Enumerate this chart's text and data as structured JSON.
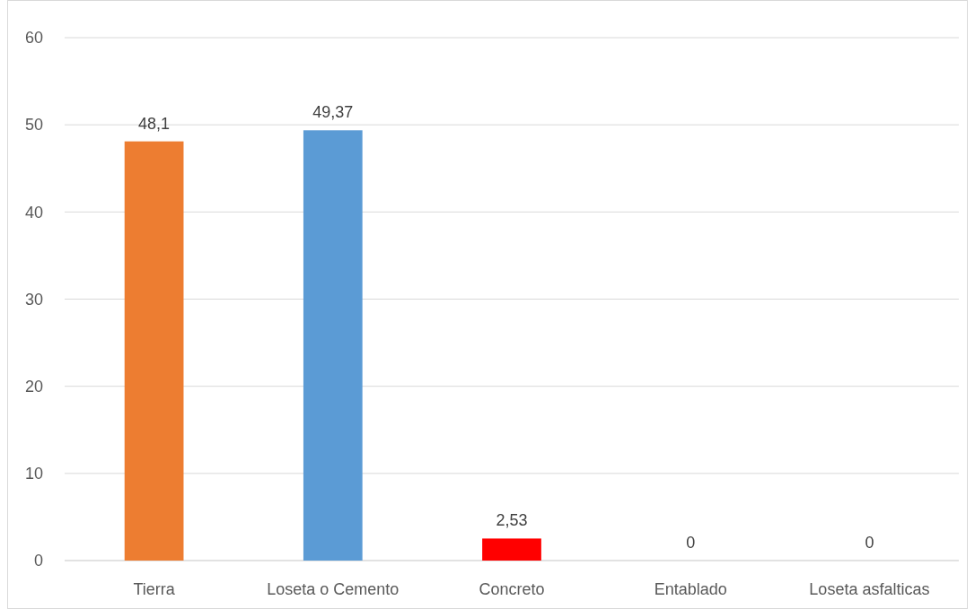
{
  "chart_data": {
    "type": "bar",
    "categories": [
      "Tierra",
      "Loseta o Cemento",
      "Concreto",
      "Entablado",
      "Loseta asfalticas"
    ],
    "values": [
      48.1,
      49.37,
      2.53,
      0,
      0
    ],
    "colors": [
      "#ed7d31",
      "#5b9bd5",
      "#ff0000",
      "#a5a5a5",
      "#ffc000"
    ],
    "value_labels": [
      "48,1",
      "49,37",
      "2,53",
      "0",
      "0"
    ],
    "ylim": [
      0,
      60
    ],
    "yticks": [
      0,
      10,
      20,
      30,
      40,
      50,
      60
    ],
    "grid": "y"
  }
}
